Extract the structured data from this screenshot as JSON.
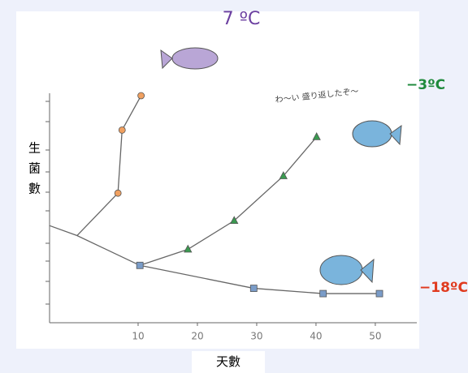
{
  "chart_data": {
    "type": "line",
    "xlabel": "天數",
    "ylabel": "生菌數",
    "annotation": "わ〜い 盛り返したぞ〜",
    "xlim": [
      -5,
      57
    ],
    "xticks": [
      10,
      20,
      30,
      40,
      50
    ],
    "ylim": [
      0,
      10.5
    ],
    "base": {
      "x": [
        -5,
        -0.3,
        10.3
      ],
      "values": [
        4.24,
        3.8,
        2.5
      ]
    },
    "series": [
      {
        "name": "7 ºC",
        "color": "#6b3fa0",
        "marker": "circle",
        "marker_color": "#f0a060",
        "x": [
          6.6,
          7.3,
          10.5
        ],
        "values": [
          5.65,
          8.4,
          9.9
        ]
      },
      {
        "name": "−3ºC",
        "color": "#1f8a3c",
        "marker": "triangle",
        "marker_color": "#3a9a50",
        "x": [
          18.4,
          26.2,
          34.5,
          40.1
        ],
        "values": [
          3.2,
          4.45,
          6.4,
          8.1
        ]
      },
      {
        "name": "−18ºC",
        "color": "#e03a1e",
        "marker": "square",
        "marker_color": "#7a9cc8",
        "x": [
          10.3,
          29.5,
          41.2,
          50.7
        ],
        "values": [
          2.5,
          1.5,
          1.27,
          1.27
        ]
      }
    ]
  }
}
